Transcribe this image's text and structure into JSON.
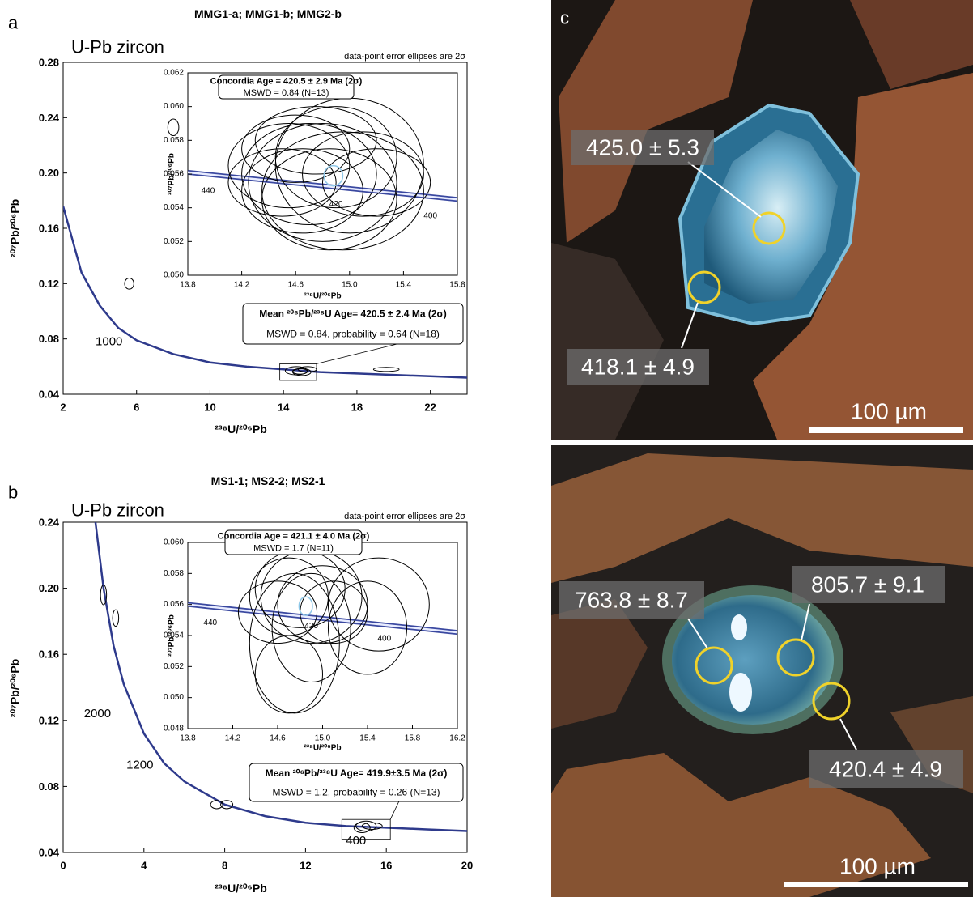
{
  "chart_data": [
    {
      "type": "scatter",
      "panel": "a",
      "title": "MMG1-a; MMG1-b; MMG2-b",
      "subtitle": "U-Pb zircon",
      "note": "data-point error ellipses are 2σ",
      "xlabel": "²³⁸U/²⁰⁶Pb",
      "ylabel": "²⁰⁷Pb/²⁰⁶Pb",
      "xlim": [
        2,
        24
      ],
      "xticks": [
        2,
        6,
        10,
        14,
        18,
        22
      ],
      "ylim": [
        0.04,
        0.28
      ],
      "yticks": [
        0.04,
        0.08,
        0.12,
        0.16,
        {
          "value": 0.2,
          "label": "0.20"
        },
        0.24,
        0.28
      ],
      "curve": {
        "color": "#2e3a8c",
        "x": [
          2,
          3,
          4,
          5,
          6,
          8,
          10,
          12,
          14,
          16,
          18,
          20,
          22,
          24
        ],
        "y": [
          0.176,
          0.128,
          0.104,
          0.088,
          0.079,
          0.069,
          0.063,
          0.06,
          0.058,
          0.056,
          0.055,
          0.054,
          0.053,
          0.052
        ]
      },
      "curve_labels": [
        {
          "text": "1000",
          "x": 4.5,
          "y": 0.078
        }
      ],
      "ellipses": {
        "color": "#000000",
        "x": [
          8.0,
          5.6,
          19.6,
          14.7,
          15.0,
          15.3,
          14.9
        ],
        "y": [
          0.233,
          0.12,
          0.058,
          0.057,
          0.056,
          0.058,
          0.0565
        ],
        "x_err": [
          0.3,
          0.25,
          0.7,
          0.6,
          0.5,
          0.5,
          0.4
        ],
        "y_err": [
          0.006,
          0.004,
          0.0015,
          0.003,
          0.0025,
          0.002,
          0.002
        ]
      },
      "box": [
        "Mean ²⁰⁶Pb/²³⁸U Age= 420.5 ± 2.4  Ma (2σ)",
        "MSWD = 0.84, probability = 0.64 (N=18)"
      ]
    },
    {
      "type": "scatter",
      "xlabel": "²³⁸U/²⁰⁶Pb",
      "ylabel": "²⁰⁷Pb/²⁰⁶Pb",
      "xlim": [
        13.8,
        15.8
      ],
      "xticks": [
        13.8,
        14.2,
        14.6,
        {
          "value": 15,
          "label": "15.0"
        },
        15.4,
        15.8
      ],
      "ylim": [
        0.05,
        0.062
      ],
      "yticks": [
        {
          "value": 0.05,
          "label": "0.050"
        },
        {
          "value": 0.052,
          "label": "0.052"
        },
        {
          "value": 0.054,
          "label": "0.054"
        },
        {
          "value": 0.056,
          "label": "0.056"
        },
        {
          "value": 0.058,
          "label": "0.058"
        },
        {
          "value": 0.06,
          "label": "0.060"
        },
        {
          "value": 0.062,
          "label": "0.062"
        }
      ],
      "curve": {
        "color": "#3a48a0",
        "x": [
          13.8,
          15.8
        ],
        "y": [
          0.0561,
          0.0545
        ]
      },
      "curve_labels": [
        {
          "text": "440",
          "x": 13.95,
          "y": 0.055
        },
        {
          "text": "420",
          "x": 14.9,
          "y": 0.0542
        },
        {
          "text": "400",
          "x": 15.6,
          "y": 0.0535
        }
      ],
      "ellipses": {
        "color": "#000000",
        "x": [
          14.55,
          14.7,
          14.8,
          14.9,
          15.0,
          14.65,
          15.1,
          14.6,
          14.85,
          15.2,
          14.75,
          14.95,
          14.5
        ],
        "y": [
          0.0565,
          0.056,
          0.0555,
          0.057,
          0.0565,
          0.055,
          0.056,
          0.0575,
          0.0545,
          0.0555,
          0.058,
          0.055,
          0.0555
        ],
        "x_err": [
          0.45,
          0.5,
          0.55,
          0.45,
          0.55,
          0.45,
          0.45,
          0.4,
          0.5,
          0.4,
          0.45,
          0.6,
          0.4
        ],
        "y_err": [
          0.0025,
          0.003,
          0.0035,
          0.003,
          0.004,
          0.0025,
          0.0025,
          0.002,
          0.003,
          0.002,
          0.002,
          0.0035,
          0.002
        ]
      },
      "mean_ellipse": {
        "color": "#8fc8e8",
        "x": [
          14.88
        ],
        "y": [
          0.0559
        ],
        "x_err": [
          0.07
        ],
        "y_err": [
          0.0006
        ]
      },
      "box": [
        "Concordia Age = 420.5 ± 2.9 Ma (2σ)",
        "MSWD = 0.84 (N=13)"
      ]
    },
    {
      "type": "scatter",
      "panel": "b",
      "title": "MS1-1; MS2-2; MS2-1",
      "subtitle": "U-Pb zircon",
      "note": "data-point error ellipses are 2σ",
      "xlabel": "²³⁸U/²⁰⁶Pb",
      "ylabel": "²⁰⁷Pb/²⁰⁶Pb",
      "xlim": [
        0,
        20
      ],
      "xticks": [
        0,
        4,
        8,
        12,
        16,
        20
      ],
      "ylim": [
        0.04,
        0.24
      ],
      "yticks": [
        0.04,
        0.08,
        0.12,
        0.16,
        {
          "value": 0.2,
          "label": "0.20"
        },
        0.24
      ],
      "curve": {
        "color": "#2e3a8c",
        "x": [
          1.6,
          2,
          2.5,
          3,
          4,
          5,
          6,
          8,
          10,
          12,
          14,
          16,
          18,
          20
        ],
        "y": [
          0.24,
          0.2,
          0.165,
          0.142,
          0.112,
          0.094,
          0.083,
          0.069,
          0.062,
          0.058,
          0.056,
          0.055,
          0.054,
          0.053
        ]
      },
      "curve_labels": [
        {
          "text": "2000",
          "x": 1.7,
          "y": 0.124
        },
        {
          "text": "1200",
          "x": 3.8,
          "y": 0.093
        },
        {
          "text": "400",
          "x": 14.5,
          "y": 0.047
        }
      ],
      "ellipses": {
        "color": "#000000",
        "x": [
          2.0,
          2.6,
          7.6,
          8.1,
          15.0,
          14.8,
          15.3
        ],
        "y": [
          0.196,
          0.182,
          0.069,
          0.069,
          0.056,
          0.055,
          0.056
        ],
        "x_err": [
          0.15,
          0.15,
          0.3,
          0.3,
          0.5,
          0.4,
          0.5
        ],
        "y_err": [
          0.006,
          0.005,
          0.0025,
          0.0025,
          0.003,
          0.003,
          0.002
        ]
      },
      "box": [
        "Mean ²⁰⁶Pb/²³⁸U Age= 419.9±3.5 Ma (2σ)",
        "MSWD = 1.2, probability = 0.26 (N=13)"
      ]
    },
    {
      "type": "scatter",
      "xlabel": "²³⁸U/²⁰⁶Pb",
      "ylabel": "²⁰⁷Pb/²⁰⁶Pb",
      "xlim": [
        13.8,
        16.2
      ],
      "xticks": [
        13.8,
        14.2,
        14.6,
        {
          "value": 15,
          "label": "15.0"
        },
        15.4,
        15.8,
        16.2
      ],
      "ylim": [
        0.048,
        0.06
      ],
      "yticks": [
        {
          "value": 0.048,
          "label": "0.048"
        },
        {
          "value": 0.05,
          "label": "0.050"
        },
        {
          "value": 0.052,
          "label": "0.052"
        },
        {
          "value": 0.054,
          "label": "0.054"
        },
        {
          "value": 0.056,
          "label": "0.056"
        },
        {
          "value": 0.058,
          "label": "0.058"
        },
        {
          "value": 0.06,
          "label": "0.060"
        }
      ],
      "curve": {
        "color": "#3a48a0",
        "x": [
          13.8,
          16.2
        ],
        "y": [
          0.056,
          0.0542
        ]
      },
      "curve_labels": [
        {
          "text": "440",
          "x": 14.0,
          "y": 0.0548
        },
        {
          "text": "420",
          "x": 14.9,
          "y": 0.0546
        },
        {
          "text": "400",
          "x": 15.55,
          "y": 0.0538
        }
      ],
      "ellipses": {
        "color": "#000000",
        "x": [
          14.7,
          14.8,
          14.9,
          14.6,
          15.0,
          14.75,
          14.9,
          15.5,
          14.7,
          15.1,
          15.4
        ],
        "y": [
          0.0565,
          0.057,
          0.0565,
          0.0555,
          0.056,
          0.0535,
          0.0545,
          0.056,
          0.0515,
          0.0555,
          0.0545
        ],
        "x_err": [
          0.35,
          0.4,
          0.45,
          0.35,
          0.4,
          0.4,
          0.35,
          0.45,
          0.3,
          0.3,
          0.35
        ],
        "y_err": [
          0.0025,
          0.0025,
          0.003,
          0.002,
          0.0025,
          0.0045,
          0.0035,
          0.003,
          0.0025,
          0.002,
          0.003
        ]
      },
      "mean_ellipse": {
        "color": "#8fc8e8",
        "x": [
          14.85
        ],
        "y": [
          0.0559
        ],
        "x_err": [
          0.06
        ],
        "y_err": [
          0.0006
        ]
      },
      "box": [
        "Concordia Age = 421.1 ± 4.0 Ma (2σ)",
        "MSWD = 1.7 (N=11)"
      ]
    }
  ],
  "photos": [
    {
      "panel": "c",
      "spots": [
        "425.0 ± 5.3",
        "418.1 ± 4.9"
      ],
      "scale": "100 µm"
    },
    {
      "spots": [
        "763.8 ± 8.7",
        "805.7 ± 9.1",
        "420.4 ± 4.9"
      ],
      "scale": "100 µm"
    }
  ]
}
